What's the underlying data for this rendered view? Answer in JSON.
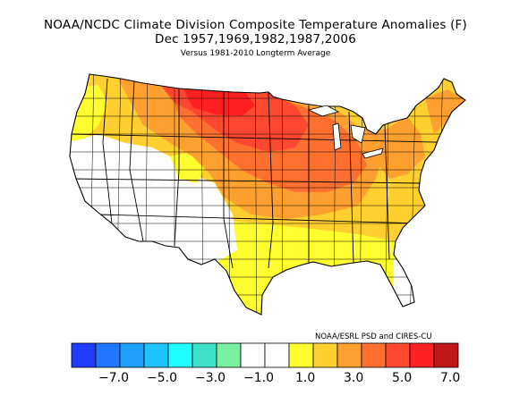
{
  "title": {
    "line1": "NOAA/NCDC Climate Division Composite Temperature Anomalies (F)",
    "line2": "Dec   1957,1969,1982,1987,2006",
    "line3": "Versus 1981-2010 Longterm Average"
  },
  "credit": "NOAA/ESRL PSD and CIRES-CU",
  "legend": {
    "colors": [
      "#1f3cff",
      "#1f78ff",
      "#1fa0ff",
      "#1fc4ff",
      "#1fffff",
      "#40e0c8",
      "#78f0a0",
      "#ffffff",
      "#ffffff",
      "#ffff30",
      "#ffd030",
      "#ffa030",
      "#ff7030",
      "#ff4830",
      "#ff2020",
      "#c01818"
    ],
    "ticks": [
      "−7.0",
      "−5.0",
      "−3.0",
      "−1.0",
      "1.0",
      "3.0",
      "5.0",
      "7.0"
    ]
  }
}
